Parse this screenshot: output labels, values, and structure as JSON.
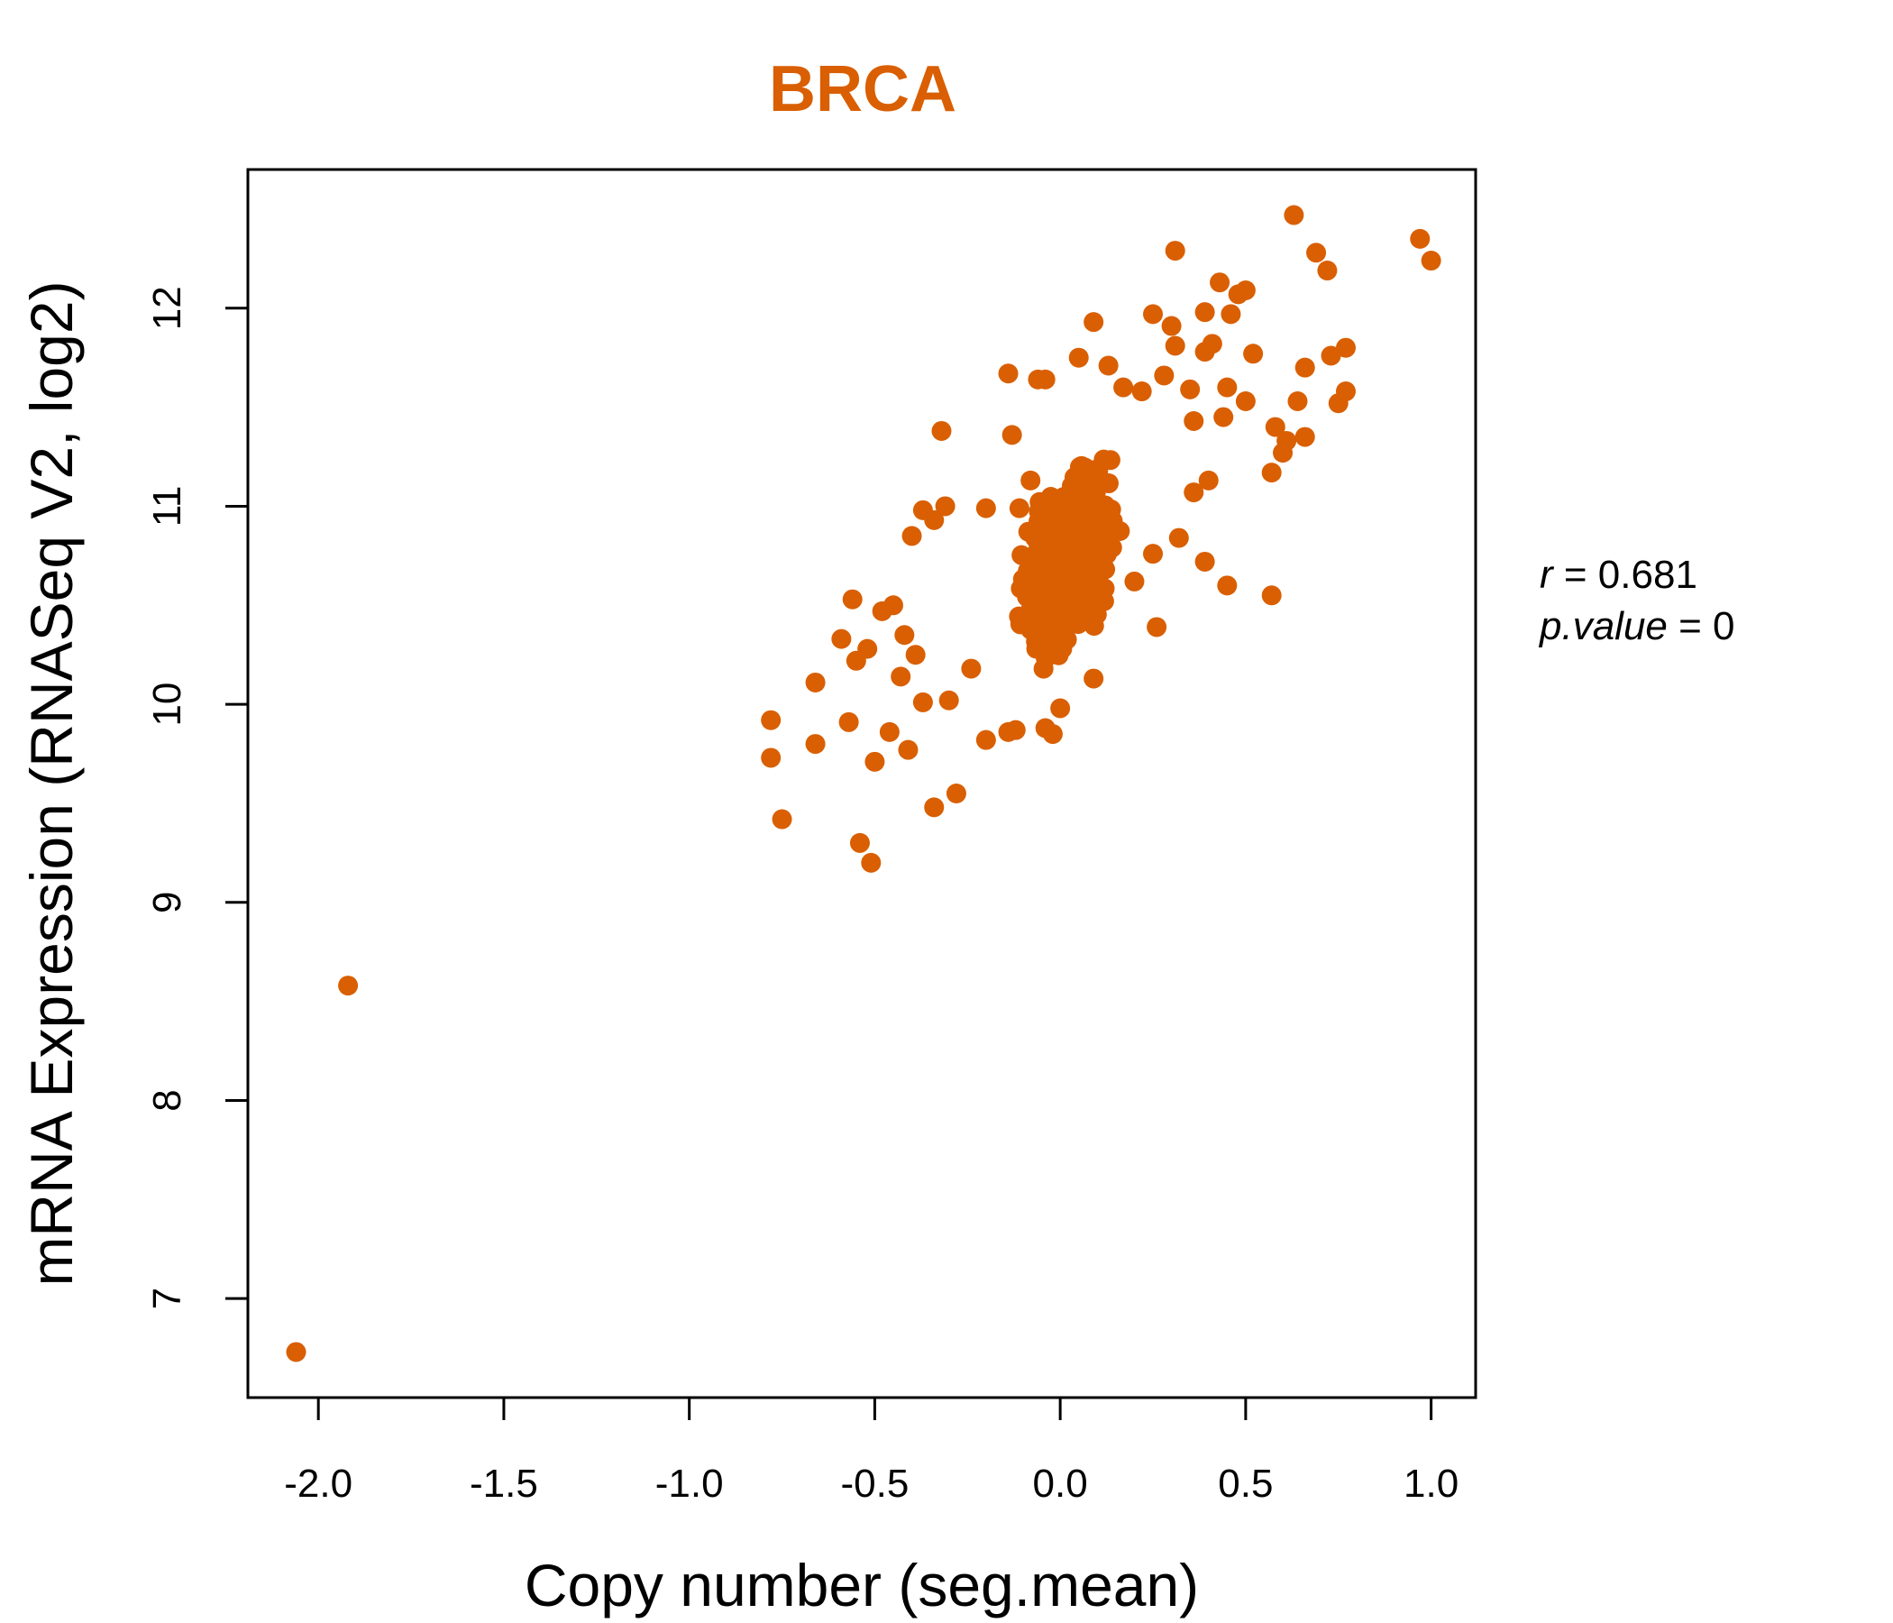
{
  "chart_data": {
    "type": "scatter",
    "title": "BRCA",
    "xlabel": "Copy number (seg.mean)",
    "ylabel": "mRNA Expression (RNASeq V2, log2)",
    "xlim": [
      -2.19,
      1.12
    ],
    "ylim": [
      6.5,
      12.7
    ],
    "x_ticks": [
      -2.0,
      -1.5,
      -1.0,
      -0.5,
      0.0,
      0.5,
      1.0
    ],
    "x_tick_labels": [
      "-2.0",
      "-1.5",
      "-1.0",
      "-0.5",
      "0.0",
      "0.5",
      "1.0"
    ],
    "y_ticks": [
      7,
      8,
      9,
      10,
      11,
      12
    ],
    "y_tick_labels": [
      "7",
      "8",
      "9",
      "10",
      "11",
      "12"
    ],
    "grid": false,
    "point_color": "#D95F02",
    "annotations": {
      "r_symbol": "r",
      "r_eq": " = 0.681",
      "p_symbol": "p.value",
      "p_eq": " = 0"
    },
    "points": [
      [
        -2.06,
        6.73
      ],
      [
        -1.92,
        8.58
      ],
      [
        -0.78,
        9.73
      ],
      [
        -0.78,
        9.92
      ],
      [
        -0.75,
        9.42
      ],
      [
        -0.66,
        9.8
      ],
      [
        -0.66,
        10.11
      ],
      [
        -0.59,
        10.33
      ],
      [
        -0.57,
        9.91
      ],
      [
        -0.56,
        10.53
      ],
      [
        -0.54,
        9.3
      ],
      [
        -0.51,
        9.2
      ],
      [
        -0.5,
        9.71
      ],
      [
        -0.46,
        9.86
      ],
      [
        -0.41,
        9.77
      ],
      [
        -0.34,
        9.48
      ],
      [
        -0.28,
        9.55
      ],
      [
        -0.55,
        10.22
      ],
      [
        -0.52,
        10.28
      ],
      [
        -0.48,
        10.47
      ],
      [
        -0.45,
        10.5
      ],
      [
        -0.42,
        10.35
      ],
      [
        -0.4,
        10.85
      ],
      [
        -0.37,
        10.98
      ],
      [
        -0.34,
        10.93
      ],
      [
        -0.32,
        11.38
      ],
      [
        -0.31,
        11.0
      ],
      [
        -0.2,
        10.99
      ],
      [
        -0.14,
        11.67
      ],
      [
        -0.13,
        11.36
      ],
      [
        -0.11,
        10.99
      ],
      [
        -0.08,
        11.13
      ],
      [
        -0.06,
        11.64
      ],
      [
        -0.04,
        11.64
      ],
      [
        0.05,
        11.75
      ],
      [
        0.09,
        11.93
      ],
      [
        0.13,
        11.71
      ],
      [
        0.17,
        11.6
      ],
      [
        0.22,
        11.58
      ],
      [
        0.25,
        11.97
      ],
      [
        0.28,
        11.66
      ],
      [
        0.3,
        11.91
      ],
      [
        0.31,
        12.29
      ],
      [
        0.31,
        11.81
      ],
      [
        0.35,
        11.59
      ],
      [
        0.36,
        11.43
      ],
      [
        0.39,
        11.98
      ],
      [
        0.39,
        11.78
      ],
      [
        0.41,
        11.82
      ],
      [
        0.43,
        12.13
      ],
      [
        0.44,
        11.45
      ],
      [
        0.45,
        11.6
      ],
      [
        0.46,
        11.97
      ],
      [
        0.48,
        12.07
      ],
      [
        0.5,
        12.09
      ],
      [
        0.5,
        11.53
      ],
      [
        0.52,
        11.77
      ],
      [
        0.57,
        11.17
      ],
      [
        0.58,
        11.4
      ],
      [
        0.6,
        11.27
      ],
      [
        0.61,
        11.33
      ],
      [
        0.64,
        11.53
      ],
      [
        0.63,
        12.47
      ],
      [
        0.66,
        11.7
      ],
      [
        0.66,
        11.35
      ],
      [
        0.69,
        12.28
      ],
      [
        0.72,
        12.19
      ],
      [
        0.73,
        11.76
      ],
      [
        0.75,
        11.52
      ],
      [
        0.77,
        11.8
      ],
      [
        0.77,
        11.58
      ],
      [
        0.97,
        12.35
      ],
      [
        1.0,
        12.24
      ],
      [
        0.26,
        10.39
      ],
      [
        0.39,
        10.72
      ],
      [
        0.45,
        10.6
      ],
      [
        0.57,
        10.55
      ],
      [
        0.32,
        10.84
      ],
      [
        0.36,
        11.07
      ],
      [
        0.4,
        11.13
      ],
      [
        0.25,
        10.76
      ],
      [
        0.2,
        10.62
      ],
      [
        -0.2,
        9.82
      ],
      [
        -0.14,
        9.86
      ],
      [
        -0.12,
        9.87
      ],
      [
        -0.04,
        9.88
      ],
      [
        -0.02,
        9.85
      ],
      [
        0.0,
        9.98
      ],
      [
        0.09,
        10.13
      ],
      [
        -0.37,
        10.01
      ],
      [
        -0.3,
        10.02
      ],
      [
        -0.43,
        10.14
      ],
      [
        -0.39,
        10.25
      ],
      [
        -0.24,
        10.18
      ]
    ]
  }
}
